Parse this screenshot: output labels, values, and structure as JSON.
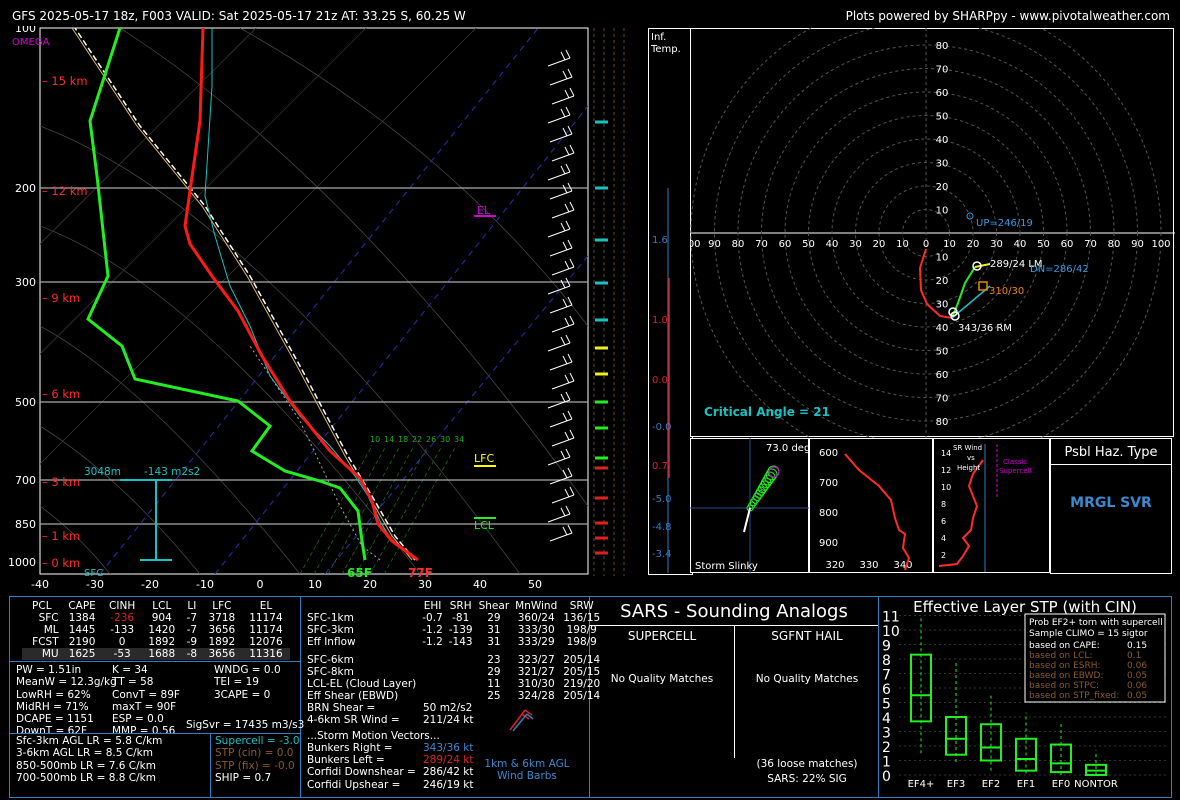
{
  "header": {
    "title": "GFS 2025-05-17 18z, F003  VALID: Sat 2025-05-17 21z  AT: 33.25 S, 60.25 W",
    "credit": "Plots powered by SHARPpy - www.pivotalweather.com"
  },
  "skewt": {
    "omega_label": "OMEGA",
    "pressure_levels": [
      "100",
      "200",
      "300",
      "500",
      "700",
      "850",
      "1000"
    ],
    "temp_ticks": [
      "-40",
      "-30",
      "-20",
      "-10",
      "0",
      "10",
      "20",
      "30",
      "40",
      "50"
    ],
    "height_labels": [
      "15 km",
      "12 km",
      "9 km",
      "6 km",
      "3 km",
      "1 km",
      "0 km"
    ],
    "annotations": {
      "el": "EL",
      "lfc": "LFC",
      "lcl": "LCL",
      "sfc": "SFC",
      "sfc_td": "65F",
      "sfc_t": "77F",
      "srh_depth": "3048m",
      "srh_value": "-143 m2s2"
    },
    "mixing_ratio_labels": [
      "10",
      "14",
      "18",
      "22",
      "26",
      "30",
      "34"
    ],
    "infl_label": "Inf.\nTemp.",
    "infl_values": [
      "1.6",
      "1.0",
      "0.0",
      "-0.0",
      "0.7",
      "-5.0",
      "-4.8",
      "-3.4"
    ]
  },
  "hodograph": {
    "rings": [
      "80",
      "70",
      "60",
      "50",
      "40",
      "30",
      "20",
      "10"
    ],
    "axis_ticks": [
      "100",
      "90",
      "80",
      "70",
      "60",
      "50",
      "40",
      "30",
      "20",
      "10",
      "0",
      "10",
      "20",
      "30",
      "40",
      "50",
      "60",
      "70",
      "80",
      "90",
      "100"
    ],
    "down_ticks": [
      "10",
      "20",
      "30",
      "40",
      "50",
      "60",
      "70",
      "80"
    ],
    "labels": {
      "up": "UP=246/19",
      "lm": "289/24 LM",
      "dn": "DN=286/42",
      "mean": "310/30",
      "rm": "343/36 RM",
      "crit": "Critical Angle = 21"
    }
  },
  "slinky": {
    "label": "Storm Slinky",
    "angle": "73.0 deg"
  },
  "theta": {
    "y_ticks": [
      "600",
      "700",
      "800",
      "900"
    ],
    "x_ticks": [
      "320",
      "330",
      "340"
    ]
  },
  "srwind": {
    "title": "SR Wind\nvs\nHeight",
    "classic": "Classic\nSupercell",
    "y_ticks": [
      "14",
      "12",
      "10",
      "8",
      "6",
      "4",
      "2"
    ]
  },
  "haz": {
    "title": "Psbl Haz. Type",
    "value": "MRGL SVR"
  },
  "parcels": {
    "headers": [
      "PCL",
      "CAPE",
      "CINH",
      "LCL",
      "LI",
      "LFC",
      "EL"
    ],
    "rows": [
      [
        "SFC",
        "1384",
        "-236",
        "904",
        "-7",
        "3718",
        "11174"
      ],
      [
        "ML",
        "1445",
        "-133",
        "1420",
        "-7",
        "3656",
        "11174"
      ],
      [
        "FCST",
        "2190",
        "0",
        "1892",
        "-9",
        "1892",
        "12076"
      ],
      [
        "MU",
        "1625",
        "-53",
        "1688",
        "-8",
        "3656",
        "11316"
      ]
    ]
  },
  "indices": {
    "left": [
      "PW = 1.51in",
      "MeanW = 12.3g/kg",
      "LowRH = 62%",
      "MidRH = 71%",
      "DCAPE = 1151",
      "DownT = 62F"
    ],
    "mid": [
      "K = 34",
      "TT = 58",
      "ConvT = 89F",
      "maxT = 90F",
      "ESP = 0.0",
      "MMP = 0.56"
    ],
    "right": [
      "WNDG = 0.0",
      "TEI = 19",
      "3CAPE = 0",
      "",
      "",
      ""
    ],
    "sigsvr": "SigSvr = 17435 m3/s3"
  },
  "lapse": [
    "Sfc-3km AGL LR = 5.8 C/km",
    "3-6km AGL LR = 8.5 C/km",
    "850-500mb LR = 7.6 C/km",
    "700-500mb LR = 8.8 C/km"
  ],
  "composite": {
    "supercell": "Supercell = -3.0",
    "stp_cin": "STP (cin) = 0.0",
    "stp_fix": "STP (fix) = -0.0",
    "ship": "SHIP = 0.7"
  },
  "kinematics": {
    "headers": [
      "EHI",
      "SRH",
      "Shear",
      "MnWind",
      "SRW"
    ],
    "rows": [
      [
        "SFC-1km",
        "-0.7",
        "-81",
        "29",
        "360/24",
        "136/15"
      ],
      [
        "SFC-3km",
        "-1.2",
        "-139",
        "31",
        "333/30",
        "198/9"
      ],
      [
        "Eff Inflow",
        "-1.2",
        "-143",
        "31",
        "333/29",
        "198/9"
      ],
      [
        "SFC-6km",
        "",
        "",
        "23",
        "323/27",
        "205/14"
      ],
      [
        "SFC-8km",
        "",
        "",
        "29",
        "321/27",
        "205/15"
      ],
      [
        "LCL-EL (Cloud Layer)",
        "",
        "",
        "11",
        "310/30",
        "219/20"
      ],
      [
        "Eff Shear (EBWD)",
        "",
        "",
        "25",
        "324/28",
        "205/14"
      ]
    ],
    "brn": "BRN Shear =",
    "brn_v": "50 m2/s2",
    "srw46": "4-6km SR Wind =",
    "srw46_v": "211/24 kt",
    "motion_title": "...Storm Motion Vectors...",
    "motions": [
      [
        "Bunkers Right =",
        "343/36 kt"
      ],
      [
        "Bunkers Left =",
        "289/24 kt"
      ],
      [
        "Corfidi Downshear =",
        "286/42 kt"
      ],
      [
        "Corfidi Upshear =",
        "246/19 kt"
      ]
    ],
    "barb_label": "1km & 6km AGL\nWind Barbs"
  },
  "sars": {
    "title": "SARS - Sounding Analogs",
    "col1": "SUPERCELL",
    "col2": "SGFNT HAIL",
    "nm1": "No Quality Matches",
    "nm2": "No Quality Matches",
    "loose": "(36 loose matches)",
    "sig": "SARS: 22% SIG"
  },
  "stp": {
    "title": "Effective Layer STP (with CIN)",
    "legend_title": "Prob EF2+ torn with supercell",
    "legend_sub": "Sample CLIMO = 15 sigtor",
    "legend_rows": [
      [
        "based on CAPE:",
        "0.15"
      ],
      [
        "based on LCL:",
        "0.1"
      ],
      [
        "based on ESRH:",
        "0.06"
      ],
      [
        "based on EBWD:",
        "0.05"
      ],
      [
        "based on STPC:",
        "0.06"
      ],
      [
        "based on STP_fixed:",
        "0.05"
      ]
    ],
    "y_ticks": [
      "11",
      "10",
      "9",
      "8",
      "7",
      "6",
      "5",
      "4",
      "3",
      "2",
      "1",
      "0"
    ]
  },
  "chart_data": {
    "type": "boxplot",
    "title": "Effective Layer STP (with CIN)",
    "categories": [
      "EF4+",
      "EF3",
      "EF2",
      "EF1",
      "EF0",
      "NONTOR"
    ],
    "ylim": [
      0,
      11
    ],
    "boxes": [
      {
        "whisker_low": 1.5,
        "q1": 3.7,
        "median": 5.5,
        "q3": 8.3,
        "whisker_high": 10.9
      },
      {
        "whisker_low": 0.9,
        "q1": 1.4,
        "median": 2.5,
        "q3": 4.0,
        "whisker_high": 7.9
      },
      {
        "whisker_low": 0.3,
        "q1": 1.0,
        "median": 1.9,
        "q3": 3.5,
        "whisker_high": 5.5
      },
      {
        "whisker_low": 0.1,
        "q1": 0.3,
        "median": 1.1,
        "q3": 2.5,
        "whisker_high": 4.3
      },
      {
        "whisker_low": 0,
        "q1": 0.2,
        "median": 0.8,
        "q3": 2.1,
        "whisker_high": 3.7
      },
      {
        "whisker_low": 0,
        "q1": 0,
        "median": 0.3,
        "q3": 0.7,
        "whisker_high": 1.7
      }
    ]
  }
}
